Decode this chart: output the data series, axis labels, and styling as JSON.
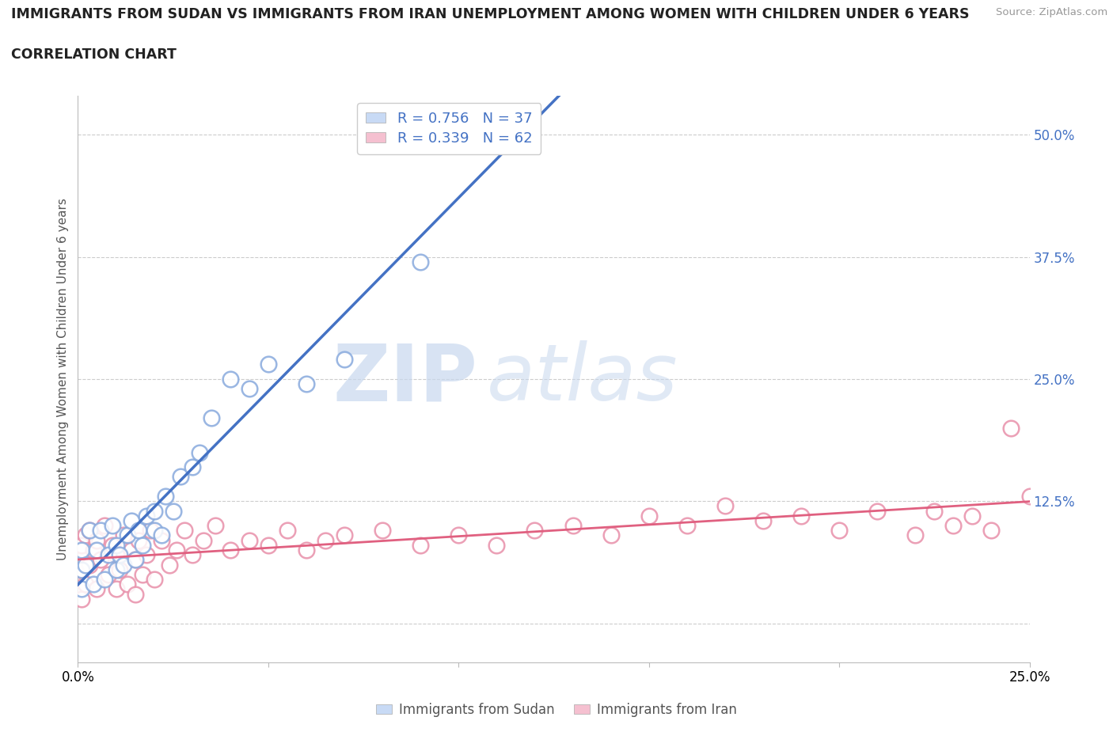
{
  "title_line1": "IMMIGRANTS FROM SUDAN VS IMMIGRANTS FROM IRAN UNEMPLOYMENT AMONG WOMEN WITH CHILDREN UNDER 6 YEARS",
  "title_line2": "CORRELATION CHART",
  "source": "Source: ZipAtlas.com",
  "ylabel": "Unemployment Among Women with Children Under 6 years",
  "xlim": [
    0.0,
    0.25
  ],
  "ylim": [
    -0.04,
    0.54
  ],
  "yticks": [
    0.0,
    0.125,
    0.25,
    0.375,
    0.5
  ],
  "ytick_labels": [
    "",
    "12.5%",
    "25.0%",
    "37.5%",
    "50.0%"
  ],
  "xticks": [
    0.0,
    0.05,
    0.1,
    0.15,
    0.2,
    0.25
  ],
  "xtick_labels": [
    "0.0%",
    "",
    "",
    "",
    "",
    "25.0%"
  ],
  "sudan_edge_color": "#88aadd",
  "iran_edge_color": "#e890aa",
  "sudan_line_color": "#4472c4",
  "iran_line_color": "#e06080",
  "legend_text_color": "#4472c4",
  "sudan_R": 0.756,
  "sudan_N": 37,
  "iran_R": 0.339,
  "iran_N": 62,
  "watermark_zip": "ZIP",
  "watermark_atlas": "atlas",
  "sudan_scatter_x": [
    0.001,
    0.001,
    0.001,
    0.002,
    0.003,
    0.004,
    0.005,
    0.006,
    0.007,
    0.008,
    0.009,
    0.01,
    0.01,
    0.011,
    0.012,
    0.013,
    0.014,
    0.015,
    0.016,
    0.017,
    0.018,
    0.02,
    0.02,
    0.022,
    0.023,
    0.025,
    0.027,
    0.03,
    0.032,
    0.035,
    0.04,
    0.045,
    0.05,
    0.06,
    0.07,
    0.09,
    0.105
  ],
  "sudan_scatter_y": [
    0.035,
    0.055,
    0.075,
    0.06,
    0.095,
    0.04,
    0.075,
    0.095,
    0.045,
    0.07,
    0.1,
    0.055,
    0.08,
    0.07,
    0.06,
    0.09,
    0.105,
    0.065,
    0.095,
    0.08,
    0.11,
    0.095,
    0.115,
    0.09,
    0.13,
    0.115,
    0.15,
    0.16,
    0.175,
    0.21,
    0.25,
    0.24,
    0.265,
    0.245,
    0.27,
    0.37,
    0.5
  ],
  "iran_scatter_x": [
    0.001,
    0.001,
    0.001,
    0.002,
    0.002,
    0.003,
    0.003,
    0.004,
    0.005,
    0.005,
    0.006,
    0.007,
    0.008,
    0.009,
    0.01,
    0.01,
    0.011,
    0.012,
    0.013,
    0.014,
    0.015,
    0.015,
    0.016,
    0.017,
    0.018,
    0.019,
    0.02,
    0.022,
    0.024,
    0.026,
    0.028,
    0.03,
    0.033,
    0.036,
    0.04,
    0.045,
    0.05,
    0.055,
    0.06,
    0.065,
    0.07,
    0.08,
    0.09,
    0.1,
    0.11,
    0.12,
    0.13,
    0.14,
    0.15,
    0.16,
    0.17,
    0.18,
    0.19,
    0.2,
    0.21,
    0.22,
    0.225,
    0.23,
    0.235,
    0.24,
    0.245,
    0.25
  ],
  "iran_scatter_y": [
    0.025,
    0.055,
    0.08,
    0.04,
    0.09,
    0.06,
    0.095,
    0.075,
    0.035,
    0.085,
    0.065,
    0.1,
    0.05,
    0.08,
    0.035,
    0.07,
    0.055,
    0.09,
    0.04,
    0.075,
    0.03,
    0.065,
    0.085,
    0.05,
    0.07,
    0.095,
    0.045,
    0.085,
    0.06,
    0.075,
    0.095,
    0.07,
    0.085,
    0.1,
    0.075,
    0.085,
    0.08,
    0.095,
    0.075,
    0.085,
    0.09,
    0.095,
    0.08,
    0.09,
    0.08,
    0.095,
    0.1,
    0.09,
    0.11,
    0.1,
    0.12,
    0.105,
    0.11,
    0.095,
    0.115,
    0.09,
    0.115,
    0.1,
    0.11,
    0.095,
    0.2,
    0.13
  ]
}
